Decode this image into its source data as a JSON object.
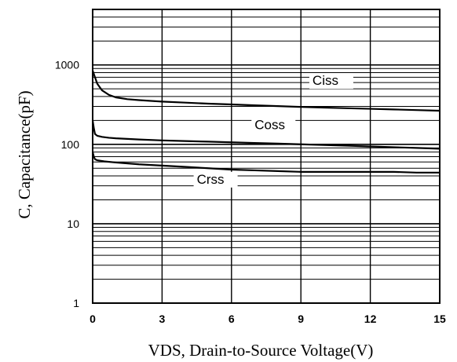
{
  "chart_data": {
    "type": "line",
    "xlabel": "VDS, Drain-to-Source Voltage(V)",
    "ylabel": "C, Capacitance(pF)",
    "xlim": [
      0,
      15
    ],
    "ylim": [
      1,
      5000
    ],
    "yscale": "log",
    "grid": "horizontal",
    "x_ticks": [
      0,
      3,
      6,
      9,
      12,
      15
    ],
    "x_tick_labels": [
      "0",
      "3",
      "6",
      "9",
      "12",
      "15"
    ],
    "y_ticks": [
      1,
      10,
      100,
      1000
    ],
    "y_tick_labels": [
      "1",
      "10",
      "100",
      "1000"
    ],
    "series": [
      {
        "name": "Ciss",
        "x": [
          0,
          0.1,
          0.2,
          0.4,
          0.7,
          1,
          1.5,
          2,
          3,
          4,
          5,
          6,
          7,
          8,
          9,
          10,
          11,
          12,
          13,
          14,
          15
        ],
        "y": [
          850,
          700,
          580,
          480,
          420,
          390,
          370,
          360,
          345,
          335,
          325,
          318,
          310,
          303,
          296,
          290,
          285,
          280,
          275,
          270,
          265
        ]
      },
      {
        "name": "Coss",
        "x": [
          0,
          0.05,
          0.1,
          0.2,
          0.4,
          0.7,
          1,
          1.5,
          2,
          3,
          4,
          5,
          6,
          7,
          8,
          9,
          10,
          11,
          12,
          13,
          14,
          15
        ],
        "y": [
          200,
          160,
          135,
          128,
          124,
          121,
          119,
          117,
          115,
          112,
          110,
          108,
          106,
          104,
          102,
          100,
          98,
          96,
          94,
          92,
          90,
          88
        ]
      },
      {
        "name": "Crss",
        "x": [
          0,
          0.05,
          0.1,
          0.2,
          0.5,
          1,
          2,
          3,
          4,
          5,
          6,
          7,
          8,
          9,
          10,
          11,
          12,
          13,
          14,
          15
        ],
        "y": [
          80,
          70,
          65,
          63,
          61,
          59,
          56,
          54,
          52,
          50,
          48,
          47,
          46,
          45,
          45,
          45,
          45,
          45,
          44,
          44
        ]
      }
    ]
  }
}
